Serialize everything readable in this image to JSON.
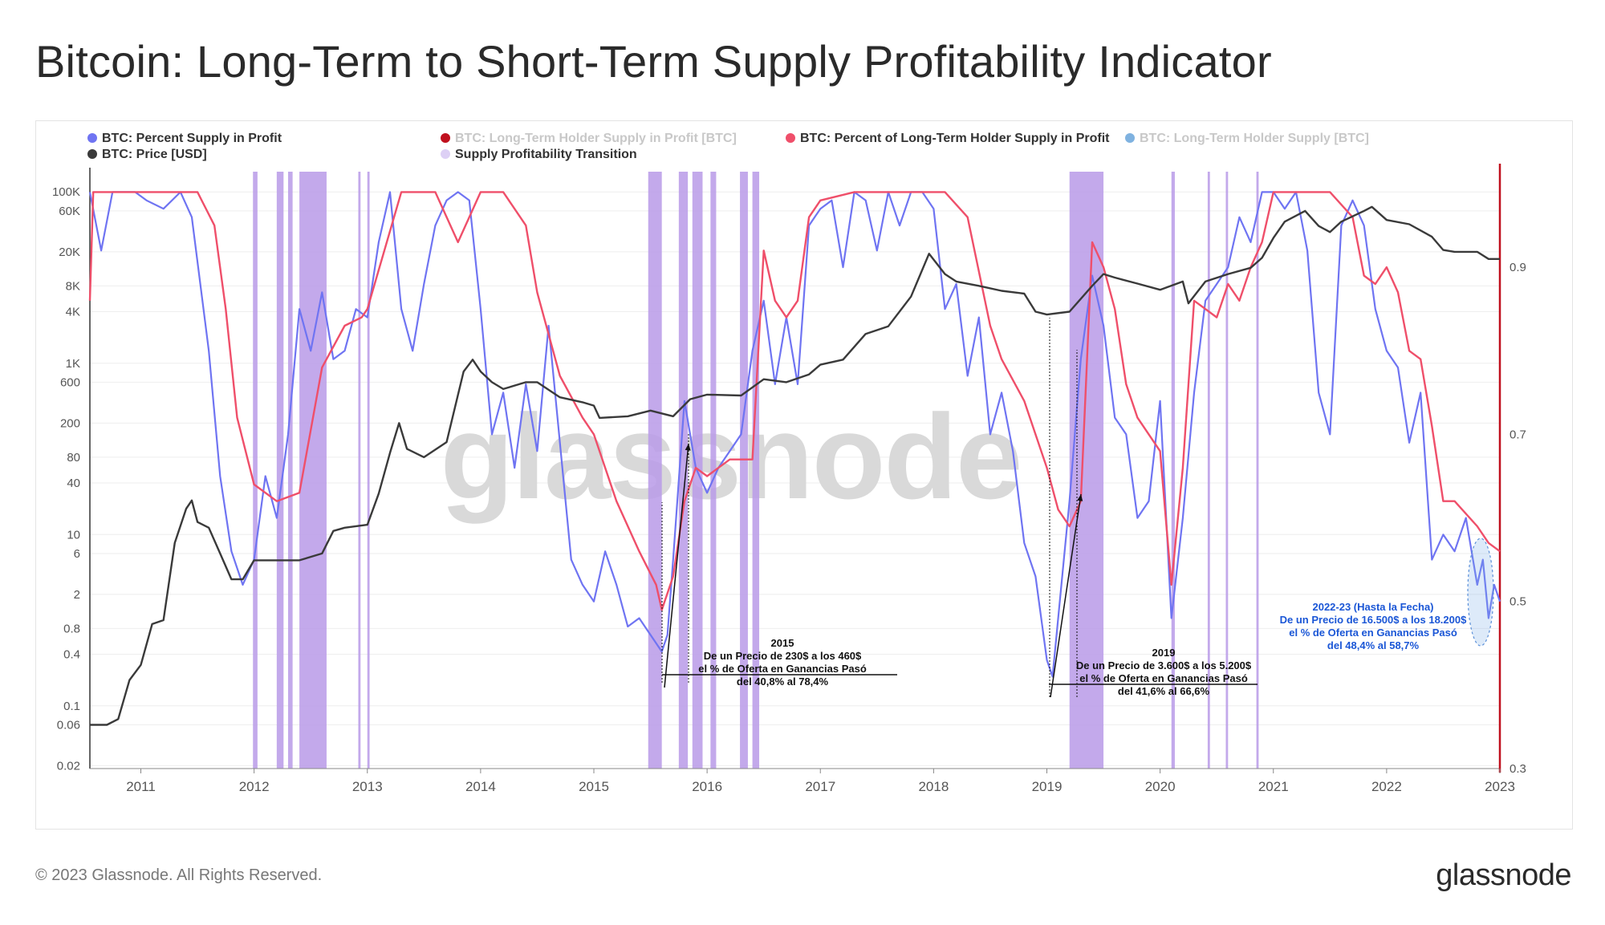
{
  "title": "Bitcoin: Long-Term to Short-Term Supply Profitability Indicator",
  "footer": {
    "copyright": "© 2023 Glassnode. All Rights Reserved.",
    "brand": "glassnode"
  },
  "watermark": "glassnode",
  "colors": {
    "supply_profit": "#6f74f2",
    "lth_percent": "#ef4f6a",
    "price": "#3a3a3a",
    "transition": "#b89ae8",
    "red_axis": "#c0101e"
  },
  "chart_data": {
    "type": "line",
    "x_labels": [
      "2011",
      "2012",
      "2013",
      "2014",
      "2015",
      "2016",
      "2017",
      "2018",
      "2019",
      "2020",
      "2021",
      "2022",
      "2023"
    ],
    "x_range": [
      2010.55,
      2023.0
    ],
    "legend": [
      {
        "name": "BTC: Percent Supply in Profit",
        "color": "#6f74f2",
        "active": true
      },
      {
        "name": "BTC: Long-Term Holder Supply in Profit [BTC]",
        "color": "#c0101e",
        "active": false
      },
      {
        "name": "BTC: Percent of Long-Term Holder Supply in Profit",
        "color": "#ef4f6a",
        "active": true
      },
      {
        "name": "BTC: Long-Term Holder Supply [BTC]",
        "color": "#7fb2e0",
        "active": false
      },
      {
        "name": "BTC: Price [USD]",
        "color": "#3a3a3a",
        "active": true
      },
      {
        "name": "Supply Profitability Transition",
        "color": "#ddd0f5",
        "active": true
      }
    ],
    "left_axis": {
      "scale": "log",
      "ticks": [
        "100K",
        "60K",
        "20K",
        "8K",
        "4K",
        "1K",
        "600",
        "200",
        "80",
        "40",
        "10",
        "6",
        "2",
        "0.8",
        "0.4",
        "0.1",
        "0.06",
        "0.02"
      ],
      "values": [
        100000,
        60000,
        20000,
        8000,
        4000,
        1000,
        600,
        200,
        80,
        40,
        10,
        6,
        2,
        0.8,
        0.4,
        0.1,
        0.06,
        0.02
      ]
    },
    "right_axis": {
      "ticks": [
        "0.9",
        "0.7",
        "0.5",
        "0.3"
      ],
      "values": [
        0.9,
        0.7,
        0.5,
        0.3
      ],
      "range": [
        0.3,
        1.0
      ]
    },
    "series": [
      {
        "name": "BTC: Price [USD]",
        "axis": "left",
        "x": [
          2010.55,
          2010.7,
          2010.8,
          2010.9,
          2011.0,
          2011.1,
          2011.2,
          2011.3,
          2011.4,
          2011.45,
          2011.5,
          2011.6,
          2011.7,
          2011.8,
          2011.9,
          2012.0,
          2012.2,
          2012.4,
          2012.6,
          2012.7,
          2012.8,
          2013.0,
          2013.1,
          2013.2,
          2013.28,
          2013.35,
          2013.5,
          2013.7,
          2013.85,
          2013.93,
          2014.0,
          2014.1,
          2014.2,
          2014.4,
          2014.5,
          2014.7,
          2014.9,
          2015.0,
          2015.05,
          2015.3,
          2015.5,
          2015.7,
          2015.85,
          2016.0,
          2016.3,
          2016.5,
          2016.7,
          2016.9,
          2017.0,
          2017.2,
          2017.4,
          2017.6,
          2017.8,
          2017.96,
          2018.1,
          2018.2,
          2018.4,
          2018.6,
          2018.8,
          2018.9,
          2019.0,
          2019.2,
          2019.4,
          2019.5,
          2019.6,
          2019.8,
          2020.0,
          2020.2,
          2020.25,
          2020.4,
          2020.6,
          2020.8,
          2020.9,
          2021.0,
          2021.1,
          2021.28,
          2021.4,
          2021.5,
          2021.6,
          2021.8,
          2021.87,
          2022.0,
          2022.2,
          2022.4,
          2022.5,
          2022.6,
          2022.8,
          2022.9,
          2023.0
        ],
        "y": [
          0.06,
          0.06,
          0.07,
          0.2,
          0.3,
          0.9,
          1.0,
          8,
          20,
          25,
          14,
          12,
          6,
          3,
          3,
          5,
          5,
          5,
          6,
          11,
          12,
          13,
          30,
          90,
          200,
          100,
          80,
          120,
          800,
          1100,
          800,
          600,
          500,
          600,
          600,
          400,
          350,
          320,
          230,
          240,
          280,
          240,
          380,
          430,
          420,
          650,
          600,
          740,
          960,
          1100,
          2200,
          2700,
          6000,
          19000,
          11000,
          9000,
          8000,
          7000,
          6500,
          4000,
          3700,
          4000,
          8000,
          11000,
          10000,
          8500,
          7200,
          9000,
          5000,
          9000,
          11000,
          13000,
          17000,
          29000,
          45000,
          60000,
          40000,
          34000,
          45000,
          60000,
          67000,
          47000,
          42000,
          30000,
          21000,
          20000,
          20000,
          16500,
          16500
        ]
      },
      {
        "name": "BTC: Percent of Long-Term Holder Supply in Profit",
        "axis": "right",
        "x": [
          2010.55,
          2010.58,
          2011.0,
          2011.5,
          2011.65,
          2011.75,
          2011.85,
          2012.0,
          2012.2,
          2012.4,
          2012.6,
          2012.8,
          2012.95,
          2013.0,
          2013.3,
          2013.4,
          2013.6,
          2013.8,
          2014.0,
          2014.2,
          2014.4,
          2014.5,
          2014.7,
          2014.9,
          2015.0,
          2015.2,
          2015.4,
          2015.55,
          2015.6,
          2015.7,
          2015.8,
          2015.9,
          2016.0,
          2016.2,
          2016.4,
          2016.5,
          2016.6,
          2016.7,
          2016.8,
          2016.9,
          2017.0,
          2017.3,
          2017.6,
          2017.95,
          2018.1,
          2018.3,
          2018.5,
          2018.6,
          2018.8,
          2019.0,
          2019.1,
          2019.2,
          2019.3,
          2019.4,
          2019.5,
          2019.6,
          2019.7,
          2019.8,
          2019.9,
          2020.0,
          2020.1,
          2020.2,
          2020.3,
          2020.5,
          2020.6,
          2020.7,
          2020.8,
          2020.9,
          2021.0,
          2021.5,
          2021.7,
          2021.8,
          2021.9,
          2022.0,
          2022.1,
          2022.2,
          2022.3,
          2022.4,
          2022.5,
          2022.6,
          2022.8,
          2022.9,
          2023.0
        ],
        "y": [
          0.86,
          0.99,
          0.99,
          0.99,
          0.95,
          0.85,
          0.72,
          0.64,
          0.62,
          0.63,
          0.78,
          0.83,
          0.84,
          0.85,
          0.99,
          0.99,
          0.99,
          0.93,
          0.99,
          0.99,
          0.95,
          0.87,
          0.77,
          0.72,
          0.7,
          0.62,
          0.56,
          0.52,
          0.49,
          0.53,
          0.62,
          0.66,
          0.65,
          0.67,
          0.67,
          0.92,
          0.86,
          0.84,
          0.86,
          0.96,
          0.98,
          0.99,
          0.99,
          0.99,
          0.99,
          0.96,
          0.83,
          0.79,
          0.74,
          0.66,
          0.61,
          0.59,
          0.62,
          0.93,
          0.9,
          0.85,
          0.76,
          0.72,
          0.7,
          0.68,
          0.52,
          0.66,
          0.86,
          0.84,
          0.88,
          0.86,
          0.9,
          0.93,
          0.99,
          0.99,
          0.96,
          0.89,
          0.88,
          0.9,
          0.87,
          0.8,
          0.79,
          0.71,
          0.62,
          0.62,
          0.59,
          0.57,
          0.56
        ]
      },
      {
        "name": "BTC: Percent Supply in Profit",
        "axis": "right",
        "x": [
          2010.55,
          2010.65,
          2010.75,
          2010.85,
          2010.95,
          2011.05,
          2011.2,
          2011.35,
          2011.45,
          2011.6,
          2011.7,
          2011.8,
          2011.9,
          2012.0,
          2012.1,
          2012.2,
          2012.3,
          2012.4,
          2012.5,
          2012.6,
          2012.7,
          2012.8,
          2012.9,
          2013.0,
          2013.1,
          2013.2,
          2013.3,
          2013.4,
          2013.5,
          2013.6,
          2013.7,
          2013.8,
          2013.9,
          2014.0,
          2014.1,
          2014.2,
          2014.3,
          2014.4,
          2014.5,
          2014.6,
          2014.7,
          2014.8,
          2014.9,
          2015.0,
          2015.1,
          2015.2,
          2015.3,
          2015.4,
          2015.5,
          2015.6,
          2015.65,
          2015.7,
          2015.8,
          2015.85,
          2015.9,
          2016.0,
          2016.1,
          2016.2,
          2016.3,
          2016.4,
          2016.5,
          2016.6,
          2016.7,
          2016.8,
          2016.9,
          2017.0,
          2017.1,
          2017.2,
          2017.3,
          2017.4,
          2017.5,
          2017.6,
          2017.7,
          2017.8,
          2017.9,
          2018.0,
          2018.1,
          2018.2,
          2018.3,
          2018.4,
          2018.5,
          2018.6,
          2018.7,
          2018.8,
          2018.9,
          2019.0,
          2019.05,
          2019.1,
          2019.2,
          2019.3,
          2019.4,
          2019.5,
          2019.6,
          2019.7,
          2019.8,
          2019.9,
          2020.0,
          2020.1,
          2020.2,
          2020.3,
          2020.4,
          2020.5,
          2020.6,
          2020.7,
          2020.8,
          2020.9,
          2021.0,
          2021.1,
          2021.2,
          2021.3,
          2021.4,
          2021.5,
          2021.6,
          2021.7,
          2021.8,
          2021.9,
          2022.0,
          2022.1,
          2022.2,
          2022.3,
          2022.4,
          2022.5,
          2022.6,
          2022.7,
          2022.8,
          2022.85,
          2022.9,
          2022.95,
          2023.0
        ],
        "y": [
          0.99,
          0.92,
          0.99,
          0.99,
          0.99,
          0.98,
          0.97,
          0.99,
          0.96,
          0.8,
          0.65,
          0.56,
          0.52,
          0.55,
          0.65,
          0.6,
          0.7,
          0.85,
          0.8,
          0.87,
          0.79,
          0.8,
          0.85,
          0.84,
          0.93,
          0.99,
          0.85,
          0.8,
          0.88,
          0.95,
          0.98,
          0.99,
          0.98,
          0.85,
          0.7,
          0.75,
          0.66,
          0.76,
          0.68,
          0.83,
          0.69,
          0.55,
          0.52,
          0.5,
          0.56,
          0.52,
          0.47,
          0.48,
          0.46,
          0.44,
          0.46,
          0.55,
          0.74,
          0.7,
          0.66,
          0.63,
          0.66,
          0.68,
          0.7,
          0.8,
          0.86,
          0.76,
          0.84,
          0.76,
          0.95,
          0.97,
          0.98,
          0.9,
          0.99,
          0.98,
          0.92,
          0.99,
          0.95,
          0.99,
          0.99,
          0.97,
          0.85,
          0.88,
          0.77,
          0.84,
          0.7,
          0.75,
          0.68,
          0.57,
          0.53,
          0.43,
          0.41,
          0.48,
          0.62,
          0.79,
          0.89,
          0.83,
          0.72,
          0.7,
          0.6,
          0.62,
          0.74,
          0.48,
          0.6,
          0.75,
          0.86,
          0.88,
          0.9,
          0.96,
          0.93,
          0.99,
          0.99,
          0.97,
          0.99,
          0.92,
          0.75,
          0.7,
          0.95,
          0.98,
          0.95,
          0.85,
          0.8,
          0.78,
          0.69,
          0.75,
          0.55,
          0.58,
          0.56,
          0.6,
          0.52,
          0.55,
          0.48,
          0.52,
          0.5
        ]
      }
    ],
    "transition_bands": [
      [
        2011.99,
        2012.03
      ],
      [
        2012.2,
        2012.26
      ],
      [
        2012.3,
        2012.34
      ],
      [
        2012.4,
        2012.64
      ],
      [
        2012.92,
        2012.94
      ],
      [
        2013.0,
        2013.02
      ],
      [
        2015.48,
        2015.6
      ],
      [
        2015.75,
        2015.83
      ],
      [
        2015.87,
        2015.96
      ],
      [
        2016.03,
        2016.08
      ],
      [
        2016.29,
        2016.36
      ],
      [
        2016.4,
        2016.46
      ],
      [
        2019.2,
        2019.5
      ],
      [
        2020.1,
        2020.13
      ],
      [
        2020.42,
        2020.44
      ],
      [
        2020.58,
        2020.6
      ],
      [
        2020.85,
        2020.87
      ]
    ],
    "annotations": [
      {
        "lines": [
          "2015",
          "De un Precio de 230$ a los 460$",
          "el % de Oferta en Ganancias Pasó",
          "del 40,8% al 78,4%"
        ]
      },
      {
        "lines": [
          "2019",
          "De un Precio de 3.600$ a los 5.200$",
          "el % de Oferta en Ganancias Pasó",
          "del 41,6% al 66,6%"
        ]
      },
      {
        "lines": [
          "2022-23 (Hasta la Fecha)",
          "De un Precio de 16.500$ a los 18.200$",
          "el % de Oferta en Ganancias Pasó",
          "del 48,4% al 58,7%"
        ]
      }
    ]
  }
}
